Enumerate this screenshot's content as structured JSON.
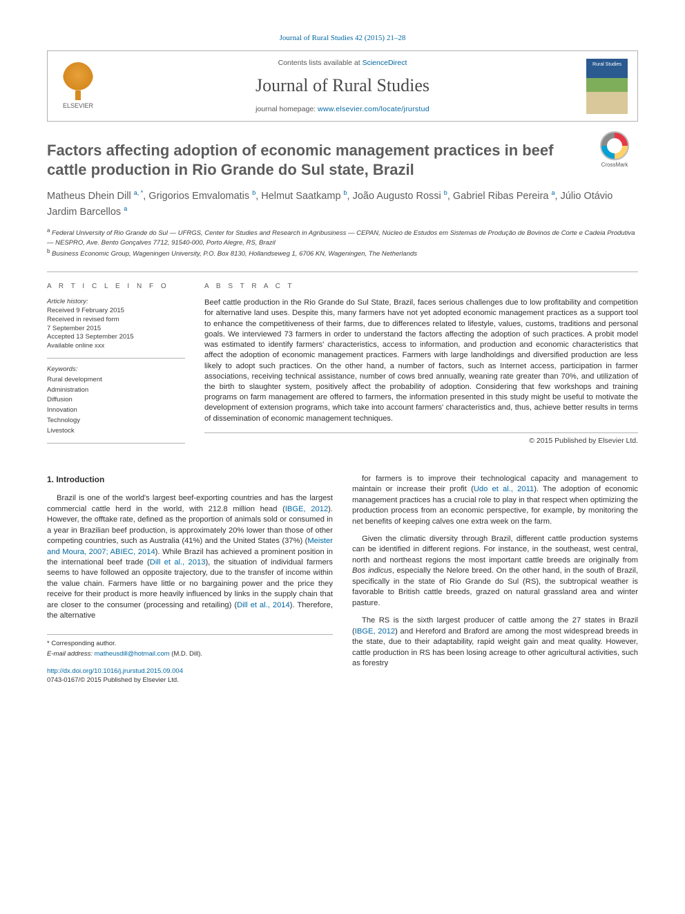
{
  "colors": {
    "link": "#0066a1",
    "text_body": "#2e2e2e",
    "text_muted": "#5c5c5c",
    "rule": "#b0b0b0",
    "background": "#ffffff"
  },
  "typography": {
    "title_fontsize": 22,
    "journal_name_fontsize": 26,
    "author_fontsize": 14.5,
    "body_fontsize": 11.2,
    "small_fontsize": 9.5,
    "font_family_body": "Arial, Helvetica, sans-serif",
    "font_family_header": "Georgia, serif"
  },
  "header": {
    "top_ref": "Journal of Rural Studies 42 (2015) 21–28",
    "contents_prefix": "Contents lists available at ",
    "contents_link": "ScienceDirect",
    "journal_name": "Journal of Rural Studies",
    "homepage_prefix": "journal homepage: ",
    "homepage_url": "www.elsevier.com/locate/jrurstud",
    "publisher_logo_label": "ELSEVIER",
    "cover_label": "Rural Studies",
    "crossmark_label": "CrossMark"
  },
  "article": {
    "title": "Factors affecting adoption of economic management practices in beef cattle production in Rio Grande do Sul state, Brazil",
    "authors_html": "Matheus Dhein Dill <sup>a, *</sup>, Grigorios Emvalomatis <sup>b</sup>, Helmut Saatkamp <sup>b</sup>, João Augusto Rossi <sup>b</sup>, Gabriel Ribas Pereira <sup>a</sup>, Júlio Otávio Jardim Barcellos <sup>a</sup>",
    "affiliations": [
      "a Federal University of Rio Grande do Sul — UFRGS, Center for Studies and Research in Agribusiness — CEPAN, Núcleo de Estudos em Sistemas de Produção de Bovinos de Corte e Cadeia Produtiva — NESPRO, Ave. Bento Gonçalves 7712, 91540-000, Porto Alegre, RS, Brazil",
      "b Business Economic Group, Wageningen University, P.O. Box 8130, Hollandseweg 1, 6706 KN, Wageningen, The Netherlands"
    ]
  },
  "article_info": {
    "heading": "A R T I C L E   I N F O",
    "history_label": "Article history:",
    "history": [
      "Received 9 February 2015",
      "Received in revised form",
      "7 September 2015",
      "Accepted 13 September 2015",
      "Available online xxx"
    ],
    "keywords_label": "Keywords:",
    "keywords": [
      "Rural development",
      "Administration",
      "Diffusion",
      "Innovation",
      "Technology",
      "Livestock"
    ]
  },
  "abstract": {
    "heading": "A B S T R A C T",
    "text": "Beef cattle production in the Rio Grande do Sul State, Brazil, faces serious challenges due to low profitability and competition for alternative land uses. Despite this, many farmers have not yet adopted economic management practices as a support tool to enhance the competitiveness of their farms, due to differences related to lifestyle, values, customs, traditions and personal goals. We interviewed 73 farmers in order to understand the factors affecting the adoption of such practices. A probit model was estimated to identify farmers' characteristics, access to information, and production and economic characteristics that affect the adoption of economic management practices. Farmers with large landholdings and diversified production are less likely to adopt such practices. On the other hand, a number of factors, such as Internet access, participation in farmer associations, receiving technical assistance, number of cows bred annually, weaning rate greater than 70%, and utilization of the birth to slaughter system, positively affect the probability of adoption. Considering that few workshops and training programs on farm management are offered to farmers, the information presented in this study might be useful to motivate the development of extension programs, which take into account farmers' characteristics and, thus, achieve better results in terms of dissemination of economic management techniques.",
    "copyright": "© 2015 Published by Elsevier Ltd."
  },
  "body": {
    "section_heading": "1. Introduction",
    "col1_paras": [
      "Brazil is one of the world's largest beef-exporting countries and has the largest commercial cattle herd in the world, with 212.8 million head (<span class=\"ref\">IBGE, 2012</span>). However, the offtake rate, defined as the proportion of animals sold or consumed in a year in Brazilian beef production, is approximately 20% lower than those of other competing countries, such as Australia (41%) and the United States (37%) (<span class=\"ref\">Meister and Moura, 2007; ABIEC, 2014</span>). While Brazil has achieved a prominent position in the international beef trade (<span class=\"ref\">Dill et al., 2013</span>), the situation of individual farmers seems to have followed an opposite trajectory, due to the transfer of income within the value chain. Farmers have little or no bargaining power and the price they receive for their product is more heavily influenced by links in the supply chain that are closer to the consumer (processing and retailing) (<span class=\"ref\">Dill et al., 2014</span>). Therefore, the alternative"
    ],
    "col2_paras": [
      "for farmers is to improve their technological capacity and management to maintain or increase their profit (<span class=\"ref\">Udo et al., 2011</span>). The adoption of economic management practices has a crucial role to play in that respect when optimizing the production process from an economic perspective, for example, by monitoring the net benefits of keeping calves one extra week on the farm.",
      "Given the climatic diversity through Brazil, different cattle production systems can be identified in different regions. For instance, in the southeast, west central, north and northeast regions the most important cattle breeds are originally from <em>Bos indicus</em>, especially the Nelore breed. On the other hand, in the south of Brazil, specifically in the state of Rio Grande do Sul (RS), the subtropical weather is favorable to British cattle breeds, grazed on natural grassland area and winter pasture.",
      "The RS is the sixth largest producer of cattle among the 27 states in Brazil (<span class=\"ref\">IBGE, 2012</span>) and Hereford and Braford are among the most widespread breeds in the state, due to their adaptability, rapid weight gain and meat quality. However, cattle production in RS has been losing acreage to other agricultural activities, such as forestry"
    ]
  },
  "footer": {
    "corresponding": "* Corresponding author.",
    "email_label": "E-mail address:",
    "email": "matheusdill@hotmail.com",
    "email_name": "(M.D. Dill).",
    "doi": "http://dx.doi.org/10.1016/j.jrurstud.2015.09.004",
    "issn_line": "0743-0167/© 2015 Published by Elsevier Ltd."
  }
}
